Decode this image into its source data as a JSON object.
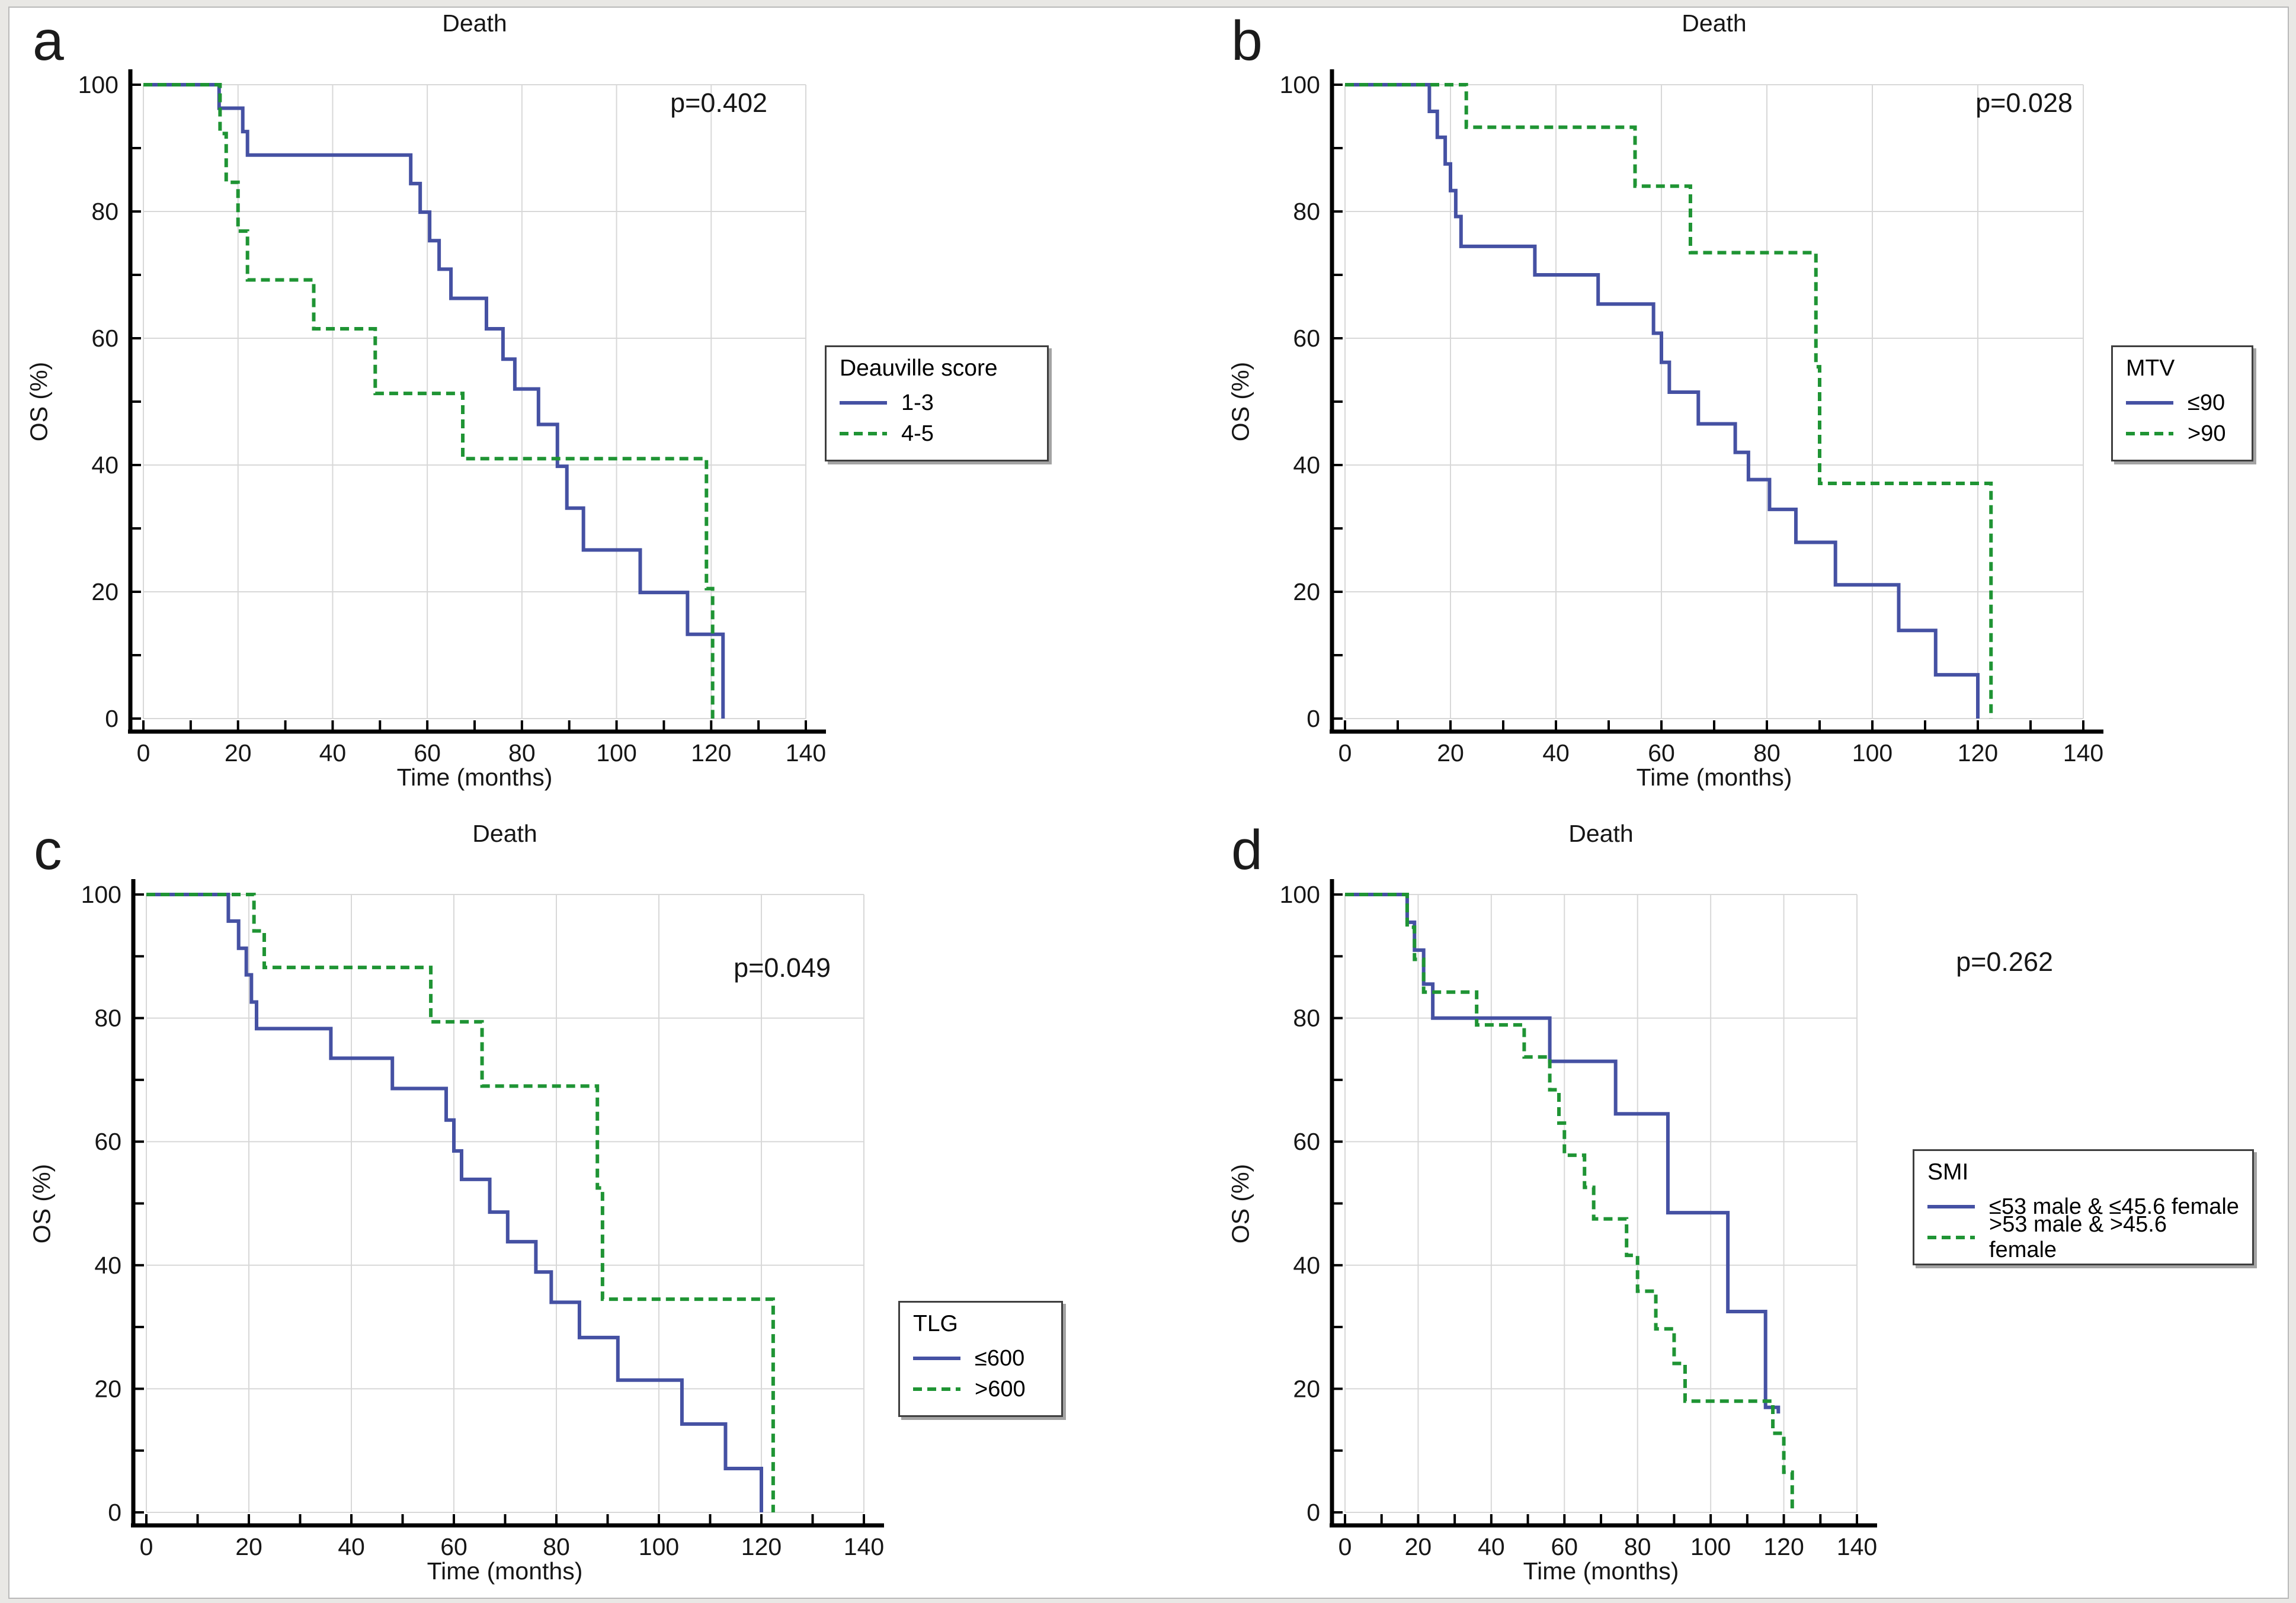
{
  "colors": {
    "series1": "#4551A3",
    "series2": "#1F9434",
    "grid": "#d8d8d8",
    "axis": "#000000",
    "text": "#161616",
    "legend_border": "#3e3e3e",
    "page_background": "#e9e8e5",
    "canvas_background": "#ffffff"
  },
  "chart_data": [
    {
      "id": "a",
      "panel_label": "a",
      "type": "line",
      "subtype": "kaplan-meier-step",
      "title": "Death",
      "p_value": "p=0.402",
      "xlabel": "Time (months)",
      "ylabel": "OS (%)",
      "xlim": [
        0,
        140
      ],
      "ylim": [
        0,
        100
      ],
      "xticks": [
        0,
        20,
        40,
        60,
        80,
        100,
        120,
        140
      ],
      "yticks": [
        0,
        20,
        40,
        60,
        80,
        100
      ],
      "minor_tick_interval": 10,
      "grid": true,
      "legend": {
        "title": "Deauville score",
        "position": "right",
        "items": [
          "1-3",
          "4-5"
        ]
      },
      "series": [
        {
          "name": "1-3",
          "style": "solid",
          "color_key": "series1",
          "points": [
            [
              0,
              100
            ],
            [
              16,
              96.3
            ],
            [
              21,
              92.6
            ],
            [
              22,
              88.9
            ],
            [
              56.5,
              84.4
            ],
            [
              58.5,
              79.9
            ],
            [
              60.5,
              75.4
            ],
            [
              62.5,
              70.9
            ],
            [
              65,
              66.3
            ],
            [
              72.5,
              61.5
            ],
            [
              76,
              56.7
            ],
            [
              78.5,
              52
            ],
            [
              83.5,
              46.4
            ],
            [
              87.5,
              39.8
            ],
            [
              89.5,
              33.2
            ],
            [
              93,
              26.6
            ],
            [
              105,
              19.9
            ],
            [
              115,
              13.3
            ],
            [
              122.5,
              0
            ]
          ]
        },
        {
          "name": "4-5",
          "style": "dashed",
          "color_key": "series2",
          "points": [
            [
              0,
              100
            ],
            [
              16.2,
              92.3
            ],
            [
              17.5,
              84.6
            ],
            [
              20,
              76.9
            ],
            [
              22,
              69.2
            ],
            [
              36,
              61.5
            ],
            [
              49,
              51.3
            ],
            [
              67.5,
              41
            ],
            [
              119,
              20.5
            ],
            [
              120.3,
              0
            ]
          ]
        }
      ]
    },
    {
      "id": "b",
      "panel_label": "b",
      "type": "line",
      "subtype": "kaplan-meier-step",
      "title": "Death",
      "p_value": "p=0.028",
      "xlabel": "Time (months)",
      "ylabel": "OS (%)",
      "xlim": [
        0,
        140
      ],
      "ylim": [
        0,
        100
      ],
      "xticks": [
        0,
        20,
        40,
        60,
        80,
        100,
        120,
        140
      ],
      "yticks": [
        0,
        20,
        40,
        60,
        80,
        100
      ],
      "minor_tick_interval": 10,
      "grid": true,
      "legend": {
        "title": "MTV",
        "position": "right",
        "items": [
          "≤90",
          ">90"
        ]
      },
      "series": [
        {
          "name": "≤90",
          "style": "solid",
          "color_key": "series1",
          "points": [
            [
              0,
              100
            ],
            [
              16,
              95.8
            ],
            [
              17.5,
              91.7
            ],
            [
              19,
              87.5
            ],
            [
              20,
              83.3
            ],
            [
              21,
              79.2
            ],
            [
              22,
              74.5
            ],
            [
              36,
              70
            ],
            [
              48,
              65.4
            ],
            [
              58.5,
              60.8
            ],
            [
              60,
              56.2
            ],
            [
              61.5,
              51.5
            ],
            [
              67,
              46.5
            ],
            [
              74,
              42
            ],
            [
              76.5,
              37.7
            ],
            [
              80.5,
              33
            ],
            [
              85.5,
              27.8
            ],
            [
              93,
              21.1
            ],
            [
              105,
              13.9
            ],
            [
              112,
              6.9
            ],
            [
              120,
              0
            ]
          ]
        },
        {
          "name": ">90",
          "style": "dashed",
          "color_key": "series2",
          "points": [
            [
              0,
              100
            ],
            [
              23,
              93.3
            ],
            [
              55,
              84
            ],
            [
              65.5,
              73.5
            ],
            [
              89.3,
              55.5
            ],
            [
              90,
              37.1
            ],
            [
              122.5,
              0
            ]
          ]
        }
      ]
    },
    {
      "id": "c",
      "panel_label": "c",
      "type": "line",
      "subtype": "kaplan-meier-step",
      "title": "Death",
      "p_value": "p=0.049",
      "xlabel": "Time (months)",
      "ylabel": "OS (%)",
      "xlim": [
        0,
        140
      ],
      "ylim": [
        0,
        100
      ],
      "xticks": [
        0,
        20,
        40,
        60,
        80,
        100,
        120,
        140
      ],
      "yticks": [
        0,
        20,
        40,
        60,
        80,
        100
      ],
      "minor_tick_interval": 10,
      "grid": true,
      "legend": {
        "title": "TLG",
        "position": "right",
        "items": [
          "≤600",
          ">600"
        ]
      },
      "series": [
        {
          "name": "≤600",
          "style": "solid",
          "color_key": "series1",
          "points": [
            [
              0,
              100
            ],
            [
              16,
              95.7
            ],
            [
              18,
              91.3
            ],
            [
              19.5,
              87
            ],
            [
              20.5,
              82.6
            ],
            [
              21.5,
              78.3
            ],
            [
              36,
              73.5
            ],
            [
              48,
              68.6
            ],
            [
              58.5,
              63.5
            ],
            [
              60,
              58.5
            ],
            [
              61.5,
              53.9
            ],
            [
              67,
              48.6
            ],
            [
              70.5,
              43.8
            ],
            [
              76,
              38.9
            ],
            [
              79,
              34
            ],
            [
              84.5,
              28.3
            ],
            [
              92,
              21.4
            ],
            [
              104.5,
              14.3
            ],
            [
              113,
              7.1
            ],
            [
              120,
              0
            ]
          ]
        },
        {
          "name": ">600",
          "style": "dashed",
          "color_key": "series2",
          "points": [
            [
              0,
              100
            ],
            [
              21,
              94.1
            ],
            [
              23,
              88.2
            ],
            [
              55.5,
              79.4
            ],
            [
              65.5,
              69
            ],
            [
              88,
              52.5
            ],
            [
              89,
              34.5
            ],
            [
              122.3,
              0
            ]
          ]
        }
      ]
    },
    {
      "id": "d",
      "panel_label": "d",
      "type": "line",
      "subtype": "kaplan-meier-step",
      "title": "Death",
      "p_value": "p=0.262",
      "xlabel": "Time (months)",
      "ylabel": "OS (%)",
      "xlim": [
        0,
        140
      ],
      "ylim": [
        0,
        100
      ],
      "xticks": [
        0,
        20,
        40,
        60,
        80,
        100,
        120,
        140
      ],
      "yticks": [
        0,
        20,
        40,
        60,
        80,
        100
      ],
      "minor_tick_interval": 10,
      "grid": true,
      "legend": {
        "title": "SMI",
        "position": "right",
        "items": [
          "≤53 male & ≤45.6 female",
          ">53 male & >45.6 female"
        ]
      },
      "series": [
        {
          "name": "≤53 male & ≤45.6 female",
          "style": "solid",
          "color_key": "series1",
          "points": [
            [
              0,
              100
            ],
            [
              17,
              95.5
            ],
            [
              19,
              91
            ],
            [
              21.5,
              85.5
            ],
            [
              24,
              80
            ],
            [
              56,
              73
            ],
            [
              74,
              64.5
            ],
            [
              88.3,
              48.5
            ],
            [
              104.7,
              32.5
            ],
            [
              115,
              17
            ],
            [
              118.5,
              16
            ]
          ]
        },
        {
          "name": ">53 male & >45.6 female",
          "style": "dashed",
          "color_key": "series2",
          "points": [
            [
              0,
              100
            ],
            [
              17,
              94.7
            ],
            [
              19,
              89.5
            ],
            [
              21.5,
              84.2
            ],
            [
              36,
              78.9
            ],
            [
              49,
              73.7
            ],
            [
              56,
              68.4
            ],
            [
              58.5,
              63
            ],
            [
              60,
              57.8
            ],
            [
              65.5,
              52.6
            ],
            [
              68,
              47.5
            ],
            [
              77,
              41.6
            ],
            [
              80,
              35.8
            ],
            [
              85,
              29.7
            ],
            [
              90,
              24.1
            ],
            [
              93,
              18
            ],
            [
              117,
              12.8
            ],
            [
              120,
              6.5
            ],
            [
              122.3,
              0
            ]
          ]
        }
      ]
    }
  ]
}
